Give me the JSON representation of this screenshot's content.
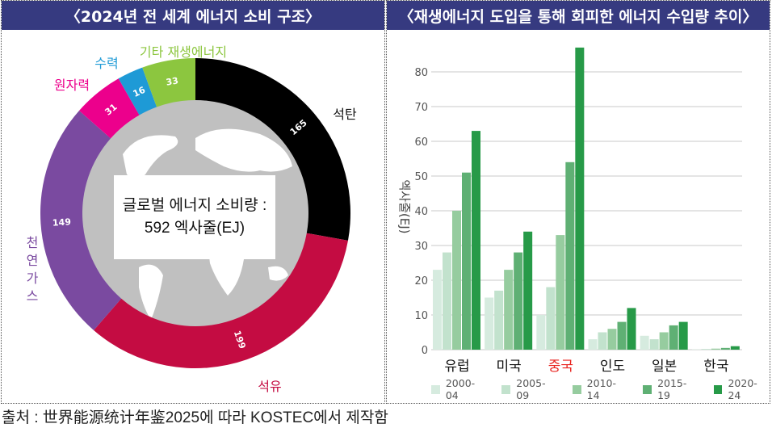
{
  "left": {
    "title": "〈2024년 전 세계 에너지 소비 구조〉",
    "center_line1": "글로벌 에너지 소비량 :",
    "center_line2": "592 엑사줄(EJ)"
  },
  "right": {
    "title": "〈재생에너지 도입을 통해 회피한 에너지 수입량 추이〉"
  },
  "source": "출처 : 世界能源统计年鉴2025에 따라 KOSTEC에서 제작함",
  "chart_data": [
    {
      "type": "pie",
      "title": "〈2024년 전 세계 에너지 소비 구조〉",
      "donut": true,
      "total_label": "글로벌 에너지 소비량 : 592 엑사줄(EJ)",
      "unit": "EJ",
      "slices": [
        {
          "label": "석탄",
          "value": 165,
          "color": "#000000",
          "label_color": "#111111"
        },
        {
          "label": "석유",
          "value": 199,
          "color": "#c40c42",
          "label_color": "#c40c42"
        },
        {
          "label": "천연가스",
          "value": 149,
          "color": "#7a4aa0",
          "label_color": "#7a4aa0"
        },
        {
          "label": "원자력",
          "value": 31,
          "color": "#ec008c",
          "label_color": "#ec008c"
        },
        {
          "label": "수력",
          "value": 16,
          "color": "#1e9ad6",
          "label_color": "#1e9ad6"
        },
        {
          "label": "기타 재생에너지",
          "value": 33,
          "color": "#8cc63f",
          "label_color": "#8cc63f"
        }
      ]
    },
    {
      "type": "bar",
      "title": "〈재생에너지 도입을 통해 회피한 에너지 수입량 추이〉",
      "xlabel": "",
      "ylabel": "엑사줄(EJ)",
      "ylim": [
        0,
        80
      ],
      "yticks": [
        0,
        10,
        20,
        30,
        40,
        50,
        60,
        70,
        80
      ],
      "grid": true,
      "legend_position": "bottom",
      "categories": [
        "유럽",
        "미국",
        "중국",
        "인도",
        "일본",
        "한국"
      ],
      "highlight_category": "중국",
      "highlight_color": "#e8241f",
      "series": [
        {
          "name": "2000-04",
          "color": "#d6ebdf",
          "values": [
            23,
            15,
            10,
            3,
            4,
            0.1
          ]
        },
        {
          "name": "2005-09",
          "color": "#c2e2cd",
          "values": [
            28,
            17,
            18,
            5,
            3,
            0.2
          ]
        },
        {
          "name": "2010-14",
          "color": "#96cc9f",
          "values": [
            40,
            23,
            33,
            6,
            5,
            0.3
          ]
        },
        {
          "name": "2015-19",
          "color": "#5fb074",
          "values": [
            51,
            28,
            54,
            8,
            7,
            0.5
          ]
        },
        {
          "name": "2020-24",
          "color": "#279a48",
          "values": [
            63,
            34,
            87,
            12,
            8,
            1
          ]
        }
      ]
    }
  ]
}
